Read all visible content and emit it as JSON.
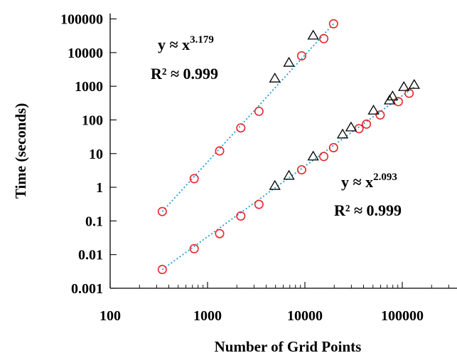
{
  "colors": {
    "circle": "#e8262b",
    "triangle": "#000000",
    "fit": "#1f9bd7"
  },
  "chart_data": {
    "type": "scatter",
    "title": "",
    "xlabel": "Number of Grid Points",
    "ylabel": "Time (seconds)",
    "x_scale": "log",
    "y_scale": "log",
    "xlim": [
      100,
      400000
    ],
    "ylim": [
      0.001,
      100000
    ],
    "x_ticks": [
      {
        "value": 100,
        "label": "100"
      },
      {
        "value": 1000,
        "label": "1000"
      },
      {
        "value": 10000,
        "label": "10000"
      },
      {
        "value": 100000,
        "label": "100000"
      }
    ],
    "y_ticks": [
      {
        "value": 0.001,
        "label": "0.001"
      },
      {
        "value": 0.01,
        "label": "0.01"
      },
      {
        "value": 0.1,
        "label": "0.1"
      },
      {
        "value": 1,
        "label": "1"
      },
      {
        "value": 10,
        "label": "10"
      },
      {
        "value": 100,
        "label": "100"
      },
      {
        "value": 1000,
        "label": "1000"
      },
      {
        "value": 10000,
        "label": "10000"
      },
      {
        "value": 100000,
        "label": "100000"
      }
    ],
    "grid": false,
    "legend": "none",
    "series": [
      {
        "marker": "circle",
        "color": "#e8262b",
        "points": [
          [
            343,
            0.19
          ],
          [
            729,
            1.8
          ],
          [
            1331,
            12
          ],
          [
            2197,
            58
          ],
          [
            3375,
            180
          ],
          [
            9261,
            8000
          ],
          [
            15625,
            26000
          ],
          [
            19683,
            72000
          ]
        ]
      },
      {
        "marker": "triangle",
        "color": "#000000",
        "points": [
          [
            4913,
            1700
          ],
          [
            6859,
            5000
          ],
          [
            12167,
            32000
          ]
        ]
      },
      {
        "marker": "circle",
        "color": "#e8262b",
        "points": [
          [
            343,
            0.0036
          ],
          [
            729,
            0.015
          ],
          [
            1331,
            0.042
          ],
          [
            2197,
            0.14
          ],
          [
            3375,
            0.31
          ],
          [
            9261,
            3.3
          ],
          [
            15625,
            8.2
          ],
          [
            19683,
            15
          ],
          [
            35937,
            55
          ],
          [
            42875,
            75
          ],
          [
            59319,
            140
          ],
          [
            91125,
            350
          ],
          [
            117649,
            620
          ]
        ]
      },
      {
        "marker": "triangle",
        "color": "#000000",
        "points": [
          [
            4913,
            1.1
          ],
          [
            6859,
            2.2
          ],
          [
            12167,
            8.2
          ],
          [
            24389,
            37
          ],
          [
            29791,
            60
          ],
          [
            50653,
            190
          ],
          [
            74088,
            380
          ],
          [
            79507,
            500
          ],
          [
            103823,
            950
          ],
          [
            132651,
            1100
          ]
        ]
      }
    ],
    "fits": [
      {
        "color": "#1f9bd7",
        "from": [
          343,
          0.19
        ],
        "to": [
          19683,
          72000
        ]
      },
      {
        "color": "#1f9bd7",
        "from": [
          343,
          0.0036
        ],
        "to": [
          132651,
          950
        ]
      }
    ],
    "annotations": [
      {
        "id": "upper_eq",
        "base": "y ≈ x",
        "exp": "3.179"
      },
      {
        "id": "upper_r2",
        "text": "R² ≈ 0.999"
      },
      {
        "id": "lower_eq",
        "base": "y ≈ x",
        "exp": "2.093"
      },
      {
        "id": "lower_r2",
        "text": "R² ≈ 0.999"
      }
    ]
  }
}
